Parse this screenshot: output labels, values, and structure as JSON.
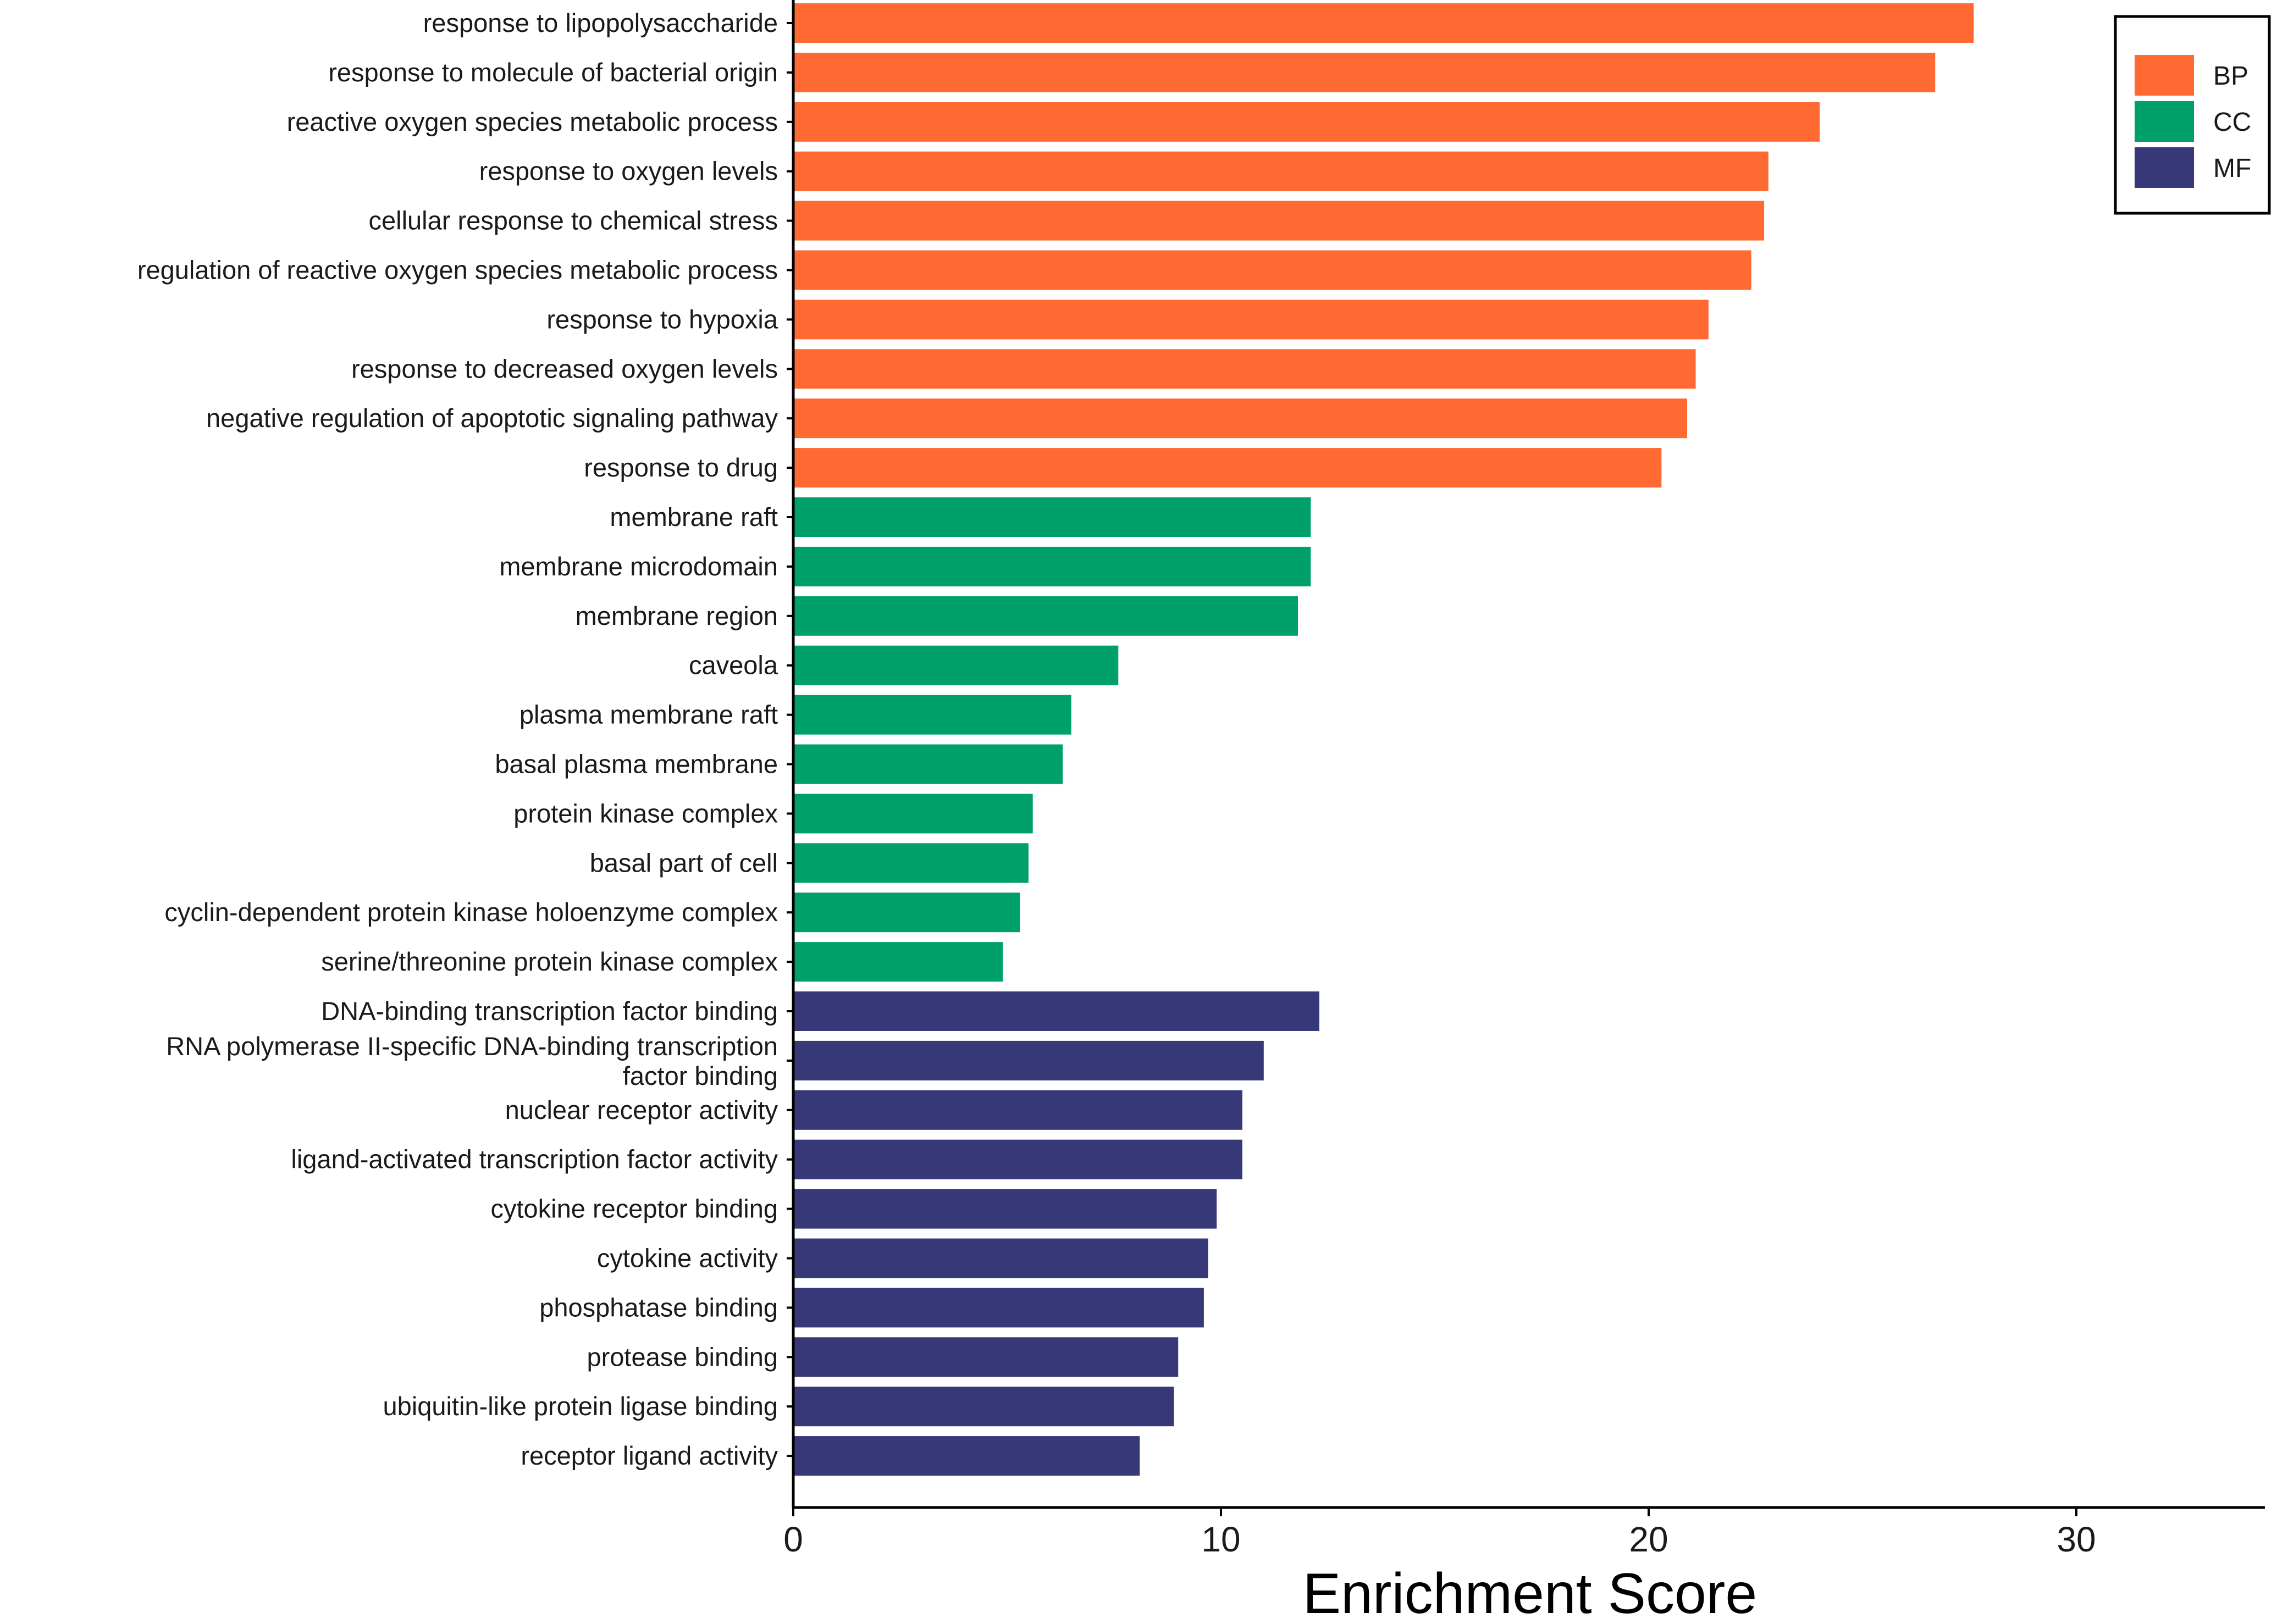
{
  "chart_data": {
    "type": "bar",
    "orientation": "horizontal",
    "title": "",
    "xlabel": "Enrichment Score",
    "ylabel": "",
    "xlim": [
      0,
      34.5
    ],
    "xticks": [
      0,
      10,
      20,
      30
    ],
    "grid": false,
    "legend_position": "top-right",
    "groups": [
      {
        "name": "BP",
        "color": "#FF6A33"
      },
      {
        "name": "CC",
        "color": "#00A06A"
      },
      {
        "name": "MF",
        "color": "#373878"
      }
    ],
    "bars": [
      {
        "label": "response to lipopolysaccharide",
        "value": 27.6,
        "group": "BP"
      },
      {
        "label": "response to molecule of bacterial origin",
        "value": 26.7,
        "group": "BP"
      },
      {
        "label": "reactive oxygen species metabolic process",
        "value": 24.0,
        "group": "BP"
      },
      {
        "label": "response to oxygen levels",
        "value": 22.8,
        "group": "BP"
      },
      {
        "label": "cellular response to chemical stress",
        "value": 22.7,
        "group": "BP"
      },
      {
        "label": "regulation of reactive oxygen species metabolic process",
        "value": 22.4,
        "group": "BP"
      },
      {
        "label": "response to hypoxia",
        "value": 21.4,
        "group": "BP"
      },
      {
        "label": "response to decreased oxygen levels",
        "value": 21.1,
        "group": "BP"
      },
      {
        "label": "negative regulation of apoptotic signaling pathway",
        "value": 20.9,
        "group": "BP"
      },
      {
        "label": "response to drug",
        "value": 20.3,
        "group": "BP"
      },
      {
        "label": "membrane raft",
        "value": 12.1,
        "group": "CC"
      },
      {
        "label": "membrane microdomain",
        "value": 12.1,
        "group": "CC"
      },
      {
        "label": "membrane region",
        "value": 11.8,
        "group": "CC"
      },
      {
        "label": "caveola",
        "value": 7.6,
        "group": "CC"
      },
      {
        "label": "plasma membrane raft",
        "value": 6.5,
        "group": "CC"
      },
      {
        "label": "basal plasma membrane",
        "value": 6.3,
        "group": "CC"
      },
      {
        "label": "protein kinase complex",
        "value": 5.6,
        "group": "CC"
      },
      {
        "label": "basal part of cell",
        "value": 5.5,
        "group": "CC"
      },
      {
        "label": "cyclin-dependent protein kinase holoenzyme complex",
        "value": 5.3,
        "group": "CC"
      },
      {
        "label": "serine/threonine protein kinase complex",
        "value": 4.9,
        "group": "CC"
      },
      {
        "label": "DNA-binding transcription factor binding",
        "value": 12.3,
        "group": "MF"
      },
      {
        "label": "RNA polymerase II-specific DNA-binding transcription factor binding",
        "value": 11.0,
        "group": "MF"
      },
      {
        "label": "nuclear receptor activity",
        "value": 10.5,
        "group": "MF"
      },
      {
        "label": "ligand-activated transcription factor activity",
        "value": 10.5,
        "group": "MF"
      },
      {
        "label": "cytokine receptor binding",
        "value": 9.9,
        "group": "MF"
      },
      {
        "label": "cytokine activity",
        "value": 9.7,
        "group": "MF"
      },
      {
        "label": "phosphatase binding",
        "value": 9.6,
        "group": "MF"
      },
      {
        "label": "protease binding",
        "value": 9.0,
        "group": "MF"
      },
      {
        "label": "ubiquitin-like protein ligase binding",
        "value": 8.9,
        "group": "MF"
      },
      {
        "label": "receptor ligand activity",
        "value": 8.1,
        "group": "MF"
      }
    ]
  }
}
